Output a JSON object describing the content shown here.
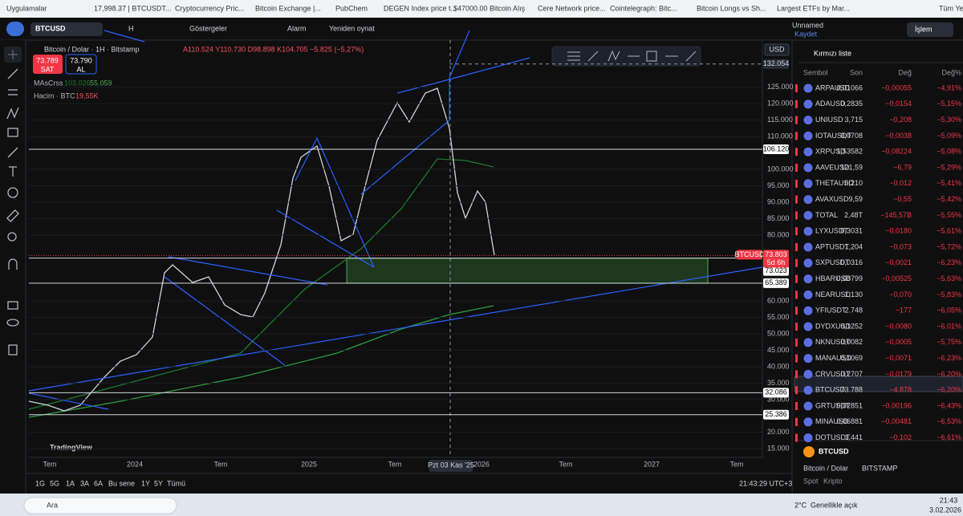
{
  "bookmarks": [
    "Uygulamalar",
    "17,998.37 | BTCUSDT...",
    "Cryptocurrency Pric...",
    "Bitcoin Exchange |...",
    "PubChem",
    "DEGEN Index price t...",
    "$47000.00 Bitcoin Alış",
    "Cere Network price...",
    "Cointelegraph: Bitc...",
    "Bitcoin Longs vs Sh...",
    "Largest ETFs by Mar...",
    "Tüm Yer"
  ],
  "toolbar": {
    "symbol": "BTCUSD",
    "interval": "H",
    "indicators": "Göstergeler",
    "alert": "Alarm",
    "replay": "Yeniden oynat",
    "layout_name": "Unnamed",
    "save": "Kaydet",
    "trade": "İşlem"
  },
  "chart": {
    "title": "Bitcoin / Dolar · 1H · Bitstamp",
    "ohlc": "A110.524 Y110.730 D98.898 K104.705 −5.825 (−5,27%)",
    "sell_price": "73.789",
    "sell": "SAT",
    "buy_price": "73.790",
    "buy": "AL",
    "indicator": "MAsCrss",
    "ma_1": "103.026",
    "ma_2": "55.059",
    "volume": "Hacim · BTC",
    "volume_value": "19,55K",
    "currency": "USD",
    "watermark": "TradingView",
    "price_axis": {
      "ylim": [
        12400,
        139300
      ],
      "ticks": [
        {
          "value": 125000,
          "label": "125.000"
        },
        {
          "value": 120000,
          "label": "120.000"
        },
        {
          "value": 115000,
          "label": "115.000"
        },
        {
          "value": 110000,
          "label": "110.000"
        },
        {
          "value": 100000,
          "label": "100.000"
        },
        {
          "value": 95000,
          "label": "95.000"
        },
        {
          "value": 90000,
          "label": "90.000"
        },
        {
          "value": 85000,
          "label": "85.000"
        },
        {
          "value": 80000,
          "label": "80.000"
        },
        {
          "value": 60000,
          "label": "60.000"
        },
        {
          "value": 55000,
          "label": "55.000"
        },
        {
          "value": 50000,
          "label": "50.000"
        },
        {
          "value": 45000,
          "label": "45.000"
        },
        {
          "value": 40000,
          "label": "40.000"
        },
        {
          "value": 35000,
          "label": "35.000"
        },
        {
          "value": 30000,
          "label": "30.000"
        },
        {
          "value": 20000,
          "label": "20.000"
        },
        {
          "value": 15000,
          "label": "15.000"
        }
      ]
    },
    "levels": [
      {
        "value": 132054,
        "label": "132.054"
      },
      {
        "value": 106120,
        "label": "106.120"
      },
      {
        "value": 73023,
        "label": "73.023"
      },
      {
        "value": 65389,
        "label": "65.389"
      },
      {
        "value": 32086,
        "label": "32.086"
      },
      {
        "value": 25386,
        "label": "25.386"
      }
    ],
    "last_price": {
      "symbol": "BTCUSD",
      "value": 73803,
      "label": "73.803",
      "countdown": "5d 6h"
    },
    "time_axis": [
      "Tem",
      "2024",
      "Tem",
      "2025",
      "Tem",
      "2026",
      "Tem",
      "2027",
      "Tem"
    ],
    "crosshair_time": "Pzt 03 Kas '25"
  },
  "bottom_bar": {
    "ranges": [
      "1G",
      "5G",
      "1A",
      "3A",
      "6A",
      "Bu sene",
      "1Y",
      "5Y",
      "Tümü"
    ],
    "clock": "21:43:29 UTC+3"
  },
  "watchlist": {
    "title": "Kırmızı liste",
    "columns": [
      "Sembol",
      "Son",
      "Değ",
      "Değ%"
    ],
    "rows": [
      [
        "ARPAUSD",
        "0,01066",
        "−0,00055",
        "−4,91%"
      ],
      [
        "ADAUSD",
        "0,2835",
        "−0,0154",
        "−5,15%"
      ],
      [
        "UNIUSD",
        "3,715",
        "−0,208",
        "−5,30%"
      ],
      [
        "IOTAUSDT",
        "0,0708",
        "−0,0038",
        "−5,09%"
      ],
      [
        "XRPUSD",
        "1,53582",
        "−0,08224",
        "−5,08%"
      ],
      [
        "AAVEUSD",
        "121,59",
        "−6,79",
        "−5,29%"
      ],
      [
        "THETAUSD",
        "0,210",
        "−0,012",
        "−5,41%"
      ],
      [
        "AVAXUSD",
        "9,59",
        "−0,55",
        "−5,42%"
      ],
      [
        "TOTAL",
        "2,48T",
        "−145,57B",
        "−5,55%"
      ],
      [
        "LYXUSDT",
        "0,3031",
        "−0,0180",
        "−5,61%"
      ],
      [
        "APTUSDT",
        "1,204",
        "−0,073",
        "−5,72%"
      ],
      [
        "SXPUSDT",
        "0,0316",
        "−0,0021",
        "−6,23%"
      ],
      [
        "HBARUSD",
        "0,08799",
        "−0,00525",
        "−5,63%"
      ],
      [
        "NEARUSD",
        "1,130",
        "−0,070",
        "−5,83%"
      ],
      [
        "YFIUSDT",
        "2.748",
        "−177",
        "−6,05%"
      ],
      [
        "DYDXUSD",
        "0,1252",
        "−0,0080",
        "−6,01%"
      ],
      [
        "NKNUSDT",
        "0,0082",
        "−0,0005",
        "−5,75%"
      ],
      [
        "MANAUSD",
        "0,1069",
        "−0,0071",
        "−6,23%"
      ],
      [
        "CRVUSDT",
        "0,2707",
        "−0,0179",
        "−6,20%"
      ],
      [
        "BTCUSD",
        "73.788",
        "−4.878",
        "−6,20%"
      ],
      [
        "GRTUSDT",
        "0,02851",
        "−0,00196",
        "−6,43%"
      ],
      [
        "MINAUSD",
        "0,06881",
        "−0,00481",
        "−6,53%"
      ],
      [
        "DOTUSDT",
        "1,441",
        "−0,102",
        "−6,61%"
      ]
    ],
    "detail": {
      "symbol": "BTCUSD",
      "name": "Bitcoin / Dolar",
      "exchange": "BITSTAMP",
      "market": "Spot",
      "asset": "Kripto"
    }
  },
  "taskbar": {
    "search": "Ara",
    "temperature": "2°C",
    "weather": "Genellikle açık",
    "time": "21:43",
    "date": "3.02.2026"
  }
}
